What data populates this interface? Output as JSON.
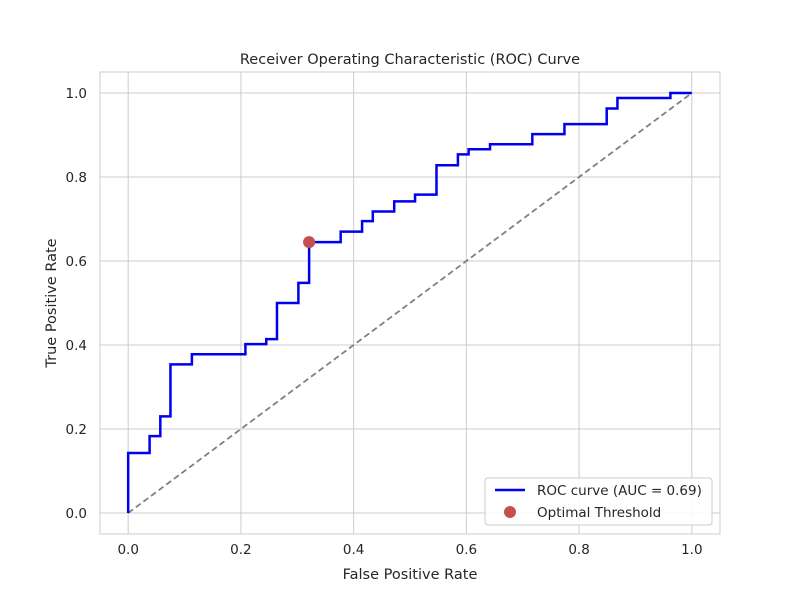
{
  "chart_data": {
    "type": "line",
    "title": "Receiver Operating Characteristic (ROC) Curve",
    "xlabel": "False Positive Rate",
    "ylabel": "True Positive Rate",
    "xlim": [
      -0.05,
      1.05
    ],
    "ylim": [
      -0.05,
      1.05
    ],
    "xticks": [
      0.0,
      0.2,
      0.4,
      0.6,
      0.8,
      1.0
    ],
    "yticks": [
      0.0,
      0.2,
      0.4,
      0.6,
      0.8,
      1.0
    ],
    "xtick_labels": [
      "0.0",
      "0.2",
      "0.4",
      "0.6",
      "0.8",
      "1.0"
    ],
    "ytick_labels": [
      "0.0",
      "0.2",
      "0.4",
      "0.6",
      "0.8",
      "1.0"
    ],
    "grid": true,
    "legend_position": "lower-right",
    "series": [
      {
        "name": "ROC curve (AUC = 0.69)",
        "color": "#0000ee",
        "style": "solid-step",
        "x": [
          0.0,
          0.0,
          0.038,
          0.038,
          0.057,
          0.057,
          0.075,
          0.075,
          0.113,
          0.113,
          0.208,
          0.208,
          0.245,
          0.245,
          0.264,
          0.264,
          0.302,
          0.302,
          0.321,
          0.321,
          0.377,
          0.377,
          0.415,
          0.415,
          0.434,
          0.434,
          0.472,
          0.472,
          0.509,
          0.509,
          0.547,
          0.547,
          0.585,
          0.585,
          0.604,
          0.604,
          0.642,
          0.642,
          0.717,
          0.717,
          0.774,
          0.774,
          0.849,
          0.849,
          0.868,
          0.868,
          0.962,
          0.962,
          1.0
        ],
        "y": [
          0.0,
          0.143,
          0.143,
          0.183,
          0.183,
          0.23,
          0.23,
          0.354,
          0.354,
          0.378,
          0.378,
          0.402,
          0.402,
          0.414,
          0.414,
          0.5,
          0.5,
          0.548,
          0.548,
          0.645,
          0.645,
          0.67,
          0.67,
          0.695,
          0.695,
          0.718,
          0.718,
          0.742,
          0.742,
          0.758,
          0.758,
          0.828,
          0.828,
          0.854,
          0.854,
          0.866,
          0.866,
          0.878,
          0.878,
          0.902,
          0.902,
          0.926,
          0.926,
          0.963,
          0.963,
          0.988,
          0.988,
          1.0,
          1.0
        ]
      },
      {
        "name": "",
        "color": "#808080",
        "style": "dashed",
        "x": [
          0.0,
          1.0
        ],
        "y": [
          0.0,
          1.0
        ]
      }
    ],
    "points": [
      {
        "name": "Optimal Threshold",
        "color": "#c44e52",
        "x": 0.321,
        "y": 0.645
      }
    ]
  }
}
